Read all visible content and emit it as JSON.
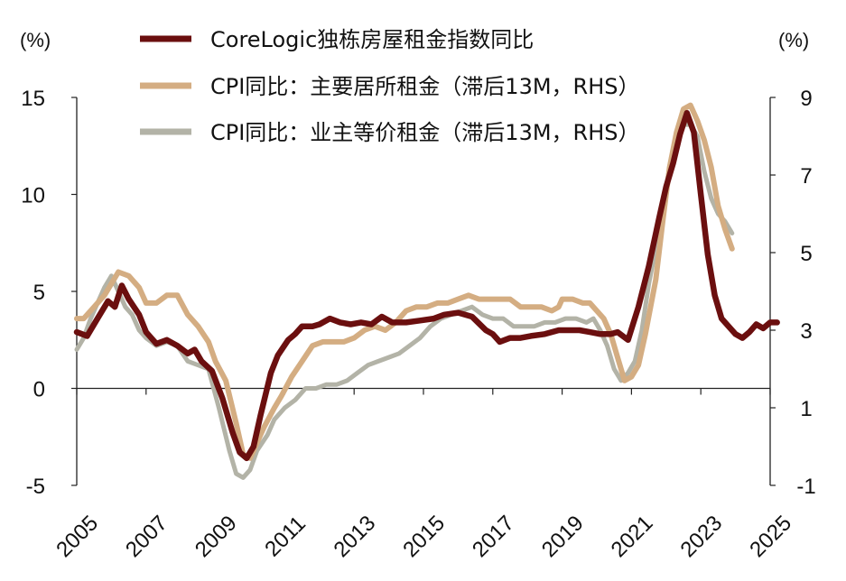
{
  "chart_data": {
    "type": "line",
    "left_unit": "(%)",
    "right_unit": "(%)",
    "x_ticks": [
      "2005",
      "2007",
      "2009",
      "2011",
      "2013",
      "2015",
      "2017",
      "2019",
      "2021",
      "2023",
      "2025"
    ],
    "left_ticks": [
      "15",
      "10",
      "5",
      "0",
      "-5"
    ],
    "right_ticks": [
      "9",
      "7",
      "5",
      "3",
      "1",
      "-1"
    ],
    "xlim": [
      2005,
      2025
    ],
    "ylim_left": [
      -5,
      15
    ],
    "ylim_right": [
      -1,
      9
    ],
    "series": [
      {
        "name": "CoreLogic独栋房屋租金指数同比",
        "axis": "left",
        "color": "#6b0f0f",
        "points": [
          [
            2005.0,
            2.9
          ],
          [
            2005.3,
            2.7
          ],
          [
            2005.6,
            3.6
          ],
          [
            2005.9,
            4.5
          ],
          [
            2006.1,
            4.2
          ],
          [
            2006.3,
            5.3
          ],
          [
            2006.5,
            4.6
          ],
          [
            2006.8,
            3.8
          ],
          [
            2007.0,
            2.9
          ],
          [
            2007.3,
            2.3
          ],
          [
            2007.6,
            2.5
          ],
          [
            2007.9,
            2.2
          ],
          [
            2008.2,
            1.8
          ],
          [
            2008.4,
            2.0
          ],
          [
            2008.6,
            1.4
          ],
          [
            2008.9,
            0.9
          ],
          [
            2009.2,
            -0.5
          ],
          [
            2009.5,
            -2.3
          ],
          [
            2009.7,
            -3.3
          ],
          [
            2009.9,
            -3.6
          ],
          [
            2010.1,
            -3.0
          ],
          [
            2010.3,
            -1.4
          ],
          [
            2010.6,
            0.8
          ],
          [
            2010.8,
            1.7
          ],
          [
            2011.1,
            2.5
          ],
          [
            2011.3,
            2.8
          ],
          [
            2011.5,
            3.2
          ],
          [
            2011.8,
            3.2
          ],
          [
            2012.0,
            3.3
          ],
          [
            2012.3,
            3.6
          ],
          [
            2012.6,
            3.4
          ],
          [
            2012.9,
            3.3
          ],
          [
            2013.2,
            3.4
          ],
          [
            2013.5,
            3.3
          ],
          [
            2013.8,
            3.7
          ],
          [
            2014.1,
            3.4
          ],
          [
            2014.5,
            3.4
          ],
          [
            2014.9,
            3.5
          ],
          [
            2015.3,
            3.6
          ],
          [
            2015.6,
            3.8
          ],
          [
            2016.0,
            3.9
          ],
          [
            2016.4,
            3.7
          ],
          [
            2016.8,
            3.0
          ],
          [
            2017.0,
            2.8
          ],
          [
            2017.2,
            2.4
          ],
          [
            2017.5,
            2.6
          ],
          [
            2017.8,
            2.6
          ],
          [
            2018.1,
            2.7
          ],
          [
            2018.5,
            2.8
          ],
          [
            2018.9,
            3.0
          ],
          [
            2019.2,
            3.0
          ],
          [
            2019.5,
            3.0
          ],
          [
            2019.8,
            2.9
          ],
          [
            2020.1,
            2.8
          ],
          [
            2020.4,
            2.8
          ],
          [
            2020.6,
            2.9
          ],
          [
            2020.9,
            2.5
          ],
          [
            2021.2,
            4.2
          ],
          [
            2021.5,
            6.3
          ],
          [
            2021.8,
            8.8
          ],
          [
            2022.0,
            10.4
          ],
          [
            2022.2,
            11.6
          ],
          [
            2022.4,
            13.1
          ],
          [
            2022.6,
            14.2
          ],
          [
            2022.8,
            13.2
          ],
          [
            2023.0,
            10.0
          ],
          [
            2023.2,
            6.9
          ],
          [
            2023.4,
            4.8
          ],
          [
            2023.6,
            3.6
          ],
          [
            2023.8,
            3.2
          ],
          [
            2024.0,
            2.8
          ],
          [
            2024.2,
            2.6
          ],
          [
            2024.4,
            2.9
          ],
          [
            2024.6,
            3.3
          ],
          [
            2024.8,
            3.1
          ],
          [
            2025.0,
            3.4
          ],
          [
            2025.2,
            3.4
          ]
        ]
      },
      {
        "name": "CPI同比：主要居所租金（滞后13M，RHS）",
        "axis": "right",
        "color": "#d4ad82",
        "points": [
          [
            2005.0,
            3.3
          ],
          [
            2005.2,
            3.3
          ],
          [
            2005.5,
            3.6
          ],
          [
            2005.8,
            3.9
          ],
          [
            2006.0,
            4.2
          ],
          [
            2006.2,
            4.5
          ],
          [
            2006.5,
            4.4
          ],
          [
            2006.8,
            4.1
          ],
          [
            2007.0,
            3.7
          ],
          [
            2007.3,
            3.7
          ],
          [
            2007.6,
            3.9
          ],
          [
            2007.9,
            3.9
          ],
          [
            2008.2,
            3.4
          ],
          [
            2008.5,
            3.1
          ],
          [
            2008.8,
            2.7
          ],
          [
            2009.0,
            2.2
          ],
          [
            2009.3,
            1.7
          ],
          [
            2009.6,
            0.6
          ],
          [
            2009.8,
            -0.2
          ],
          [
            2010.0,
            -0.3
          ],
          [
            2010.2,
            0.1
          ],
          [
            2010.4,
            0.5
          ],
          [
            2010.7,
            1.0
          ],
          [
            2010.9,
            1.3
          ],
          [
            2011.2,
            1.8
          ],
          [
            2011.5,
            2.2
          ],
          [
            2011.8,
            2.6
          ],
          [
            2012.1,
            2.7
          ],
          [
            2012.4,
            2.7
          ],
          [
            2012.7,
            2.7
          ],
          [
            2013.0,
            2.8
          ],
          [
            2013.3,
            3.0
          ],
          [
            2013.6,
            3.1
          ],
          [
            2013.9,
            3.0
          ],
          [
            2014.2,
            3.2
          ],
          [
            2014.5,
            3.5
          ],
          [
            2014.8,
            3.6
          ],
          [
            2015.1,
            3.6
          ],
          [
            2015.4,
            3.7
          ],
          [
            2015.7,
            3.7
          ],
          [
            2016.0,
            3.8
          ],
          [
            2016.3,
            3.9
          ],
          [
            2016.6,
            3.8
          ],
          [
            2016.9,
            3.8
          ],
          [
            2017.2,
            3.8
          ],
          [
            2017.5,
            3.8
          ],
          [
            2017.8,
            3.6
          ],
          [
            2018.1,
            3.6
          ],
          [
            2018.4,
            3.6
          ],
          [
            2018.7,
            3.5
          ],
          [
            2018.9,
            3.6
          ],
          [
            2019.0,
            3.8
          ],
          [
            2019.3,
            3.8
          ],
          [
            2019.6,
            3.7
          ],
          [
            2019.8,
            3.7
          ],
          [
            2020.0,
            3.5
          ],
          [
            2020.2,
            3.3
          ],
          [
            2020.4,
            2.9
          ],
          [
            2020.6,
            2.3
          ],
          [
            2020.8,
            1.7
          ],
          [
            2021.0,
            1.8
          ],
          [
            2021.2,
            2.1
          ],
          [
            2021.4,
            2.9
          ],
          [
            2021.7,
            4.3
          ],
          [
            2021.9,
            5.8
          ],
          [
            2022.1,
            7.2
          ],
          [
            2022.3,
            8.1
          ],
          [
            2022.5,
            8.7
          ],
          [
            2022.7,
            8.8
          ],
          [
            2022.9,
            8.4
          ],
          [
            2023.1,
            7.9
          ],
          [
            2023.3,
            7.2
          ],
          [
            2023.5,
            6.2
          ],
          [
            2023.7,
            5.6
          ],
          [
            2023.9,
            5.1
          ]
        ]
      },
      {
        "name": "CPI同比：业主等价租金（滞后13M，RHS）",
        "axis": "right",
        "color": "#b3b3a7",
        "points": [
          [
            2005.0,
            2.5
          ],
          [
            2005.2,
            2.8
          ],
          [
            2005.4,
            3.3
          ],
          [
            2005.6,
            3.7
          ],
          [
            2005.8,
            4.1
          ],
          [
            2006.0,
            4.4
          ],
          [
            2006.2,
            4.0
          ],
          [
            2006.4,
            3.6
          ],
          [
            2006.6,
            3.4
          ],
          [
            2006.8,
            3.0
          ],
          [
            2007.0,
            2.8
          ],
          [
            2007.3,
            2.6
          ],
          [
            2007.6,
            2.7
          ],
          [
            2007.9,
            2.6
          ],
          [
            2008.2,
            2.2
          ],
          [
            2008.5,
            2.1
          ],
          [
            2008.8,
            2.0
          ],
          [
            2009.1,
            1.0
          ],
          [
            2009.4,
            -0.1
          ],
          [
            2009.6,
            -0.7
          ],
          [
            2009.8,
            -0.8
          ],
          [
            2010.0,
            -0.6
          ],
          [
            2010.2,
            -0.1
          ],
          [
            2010.5,
            0.3
          ],
          [
            2010.7,
            0.7
          ],
          [
            2011.0,
            1.0
          ],
          [
            2011.3,
            1.2
          ],
          [
            2011.6,
            1.5
          ],
          [
            2011.9,
            1.5
          ],
          [
            2012.2,
            1.6
          ],
          [
            2012.5,
            1.6
          ],
          [
            2012.8,
            1.7
          ],
          [
            2013.1,
            1.9
          ],
          [
            2013.4,
            2.1
          ],
          [
            2013.7,
            2.2
          ],
          [
            2014.0,
            2.3
          ],
          [
            2014.3,
            2.4
          ],
          [
            2014.6,
            2.6
          ],
          [
            2014.9,
            2.8
          ],
          [
            2015.2,
            3.1
          ],
          [
            2015.5,
            3.3
          ],
          [
            2015.8,
            3.4
          ],
          [
            2016.1,
            3.5
          ],
          [
            2016.4,
            3.6
          ],
          [
            2016.7,
            3.4
          ],
          [
            2017.0,
            3.3
          ],
          [
            2017.3,
            3.3
          ],
          [
            2017.6,
            3.1
          ],
          [
            2017.9,
            3.1
          ],
          [
            2018.2,
            3.1
          ],
          [
            2018.5,
            3.2
          ],
          [
            2018.8,
            3.2
          ],
          [
            2019.1,
            3.3
          ],
          [
            2019.4,
            3.3
          ],
          [
            2019.7,
            3.2
          ],
          [
            2019.9,
            3.3
          ],
          [
            2020.1,
            3.0
          ],
          [
            2020.3,
            2.6
          ],
          [
            2020.5,
            2.0
          ],
          [
            2020.7,
            1.7
          ],
          [
            2020.9,
            1.9
          ],
          [
            2021.1,
            2.2
          ],
          [
            2021.3,
            3.0
          ],
          [
            2021.5,
            4.2
          ],
          [
            2021.7,
            5.1
          ],
          [
            2021.9,
            6.2
          ],
          [
            2022.1,
            7.2
          ],
          [
            2022.3,
            7.8
          ],
          [
            2022.5,
            8.3
          ],
          [
            2022.7,
            8.3
          ],
          [
            2022.9,
            8.0
          ],
          [
            2023.1,
            7.1
          ],
          [
            2023.3,
            6.4
          ],
          [
            2023.5,
            6.0
          ],
          [
            2023.7,
            5.8
          ],
          [
            2023.9,
            5.5
          ]
        ]
      }
    ]
  }
}
